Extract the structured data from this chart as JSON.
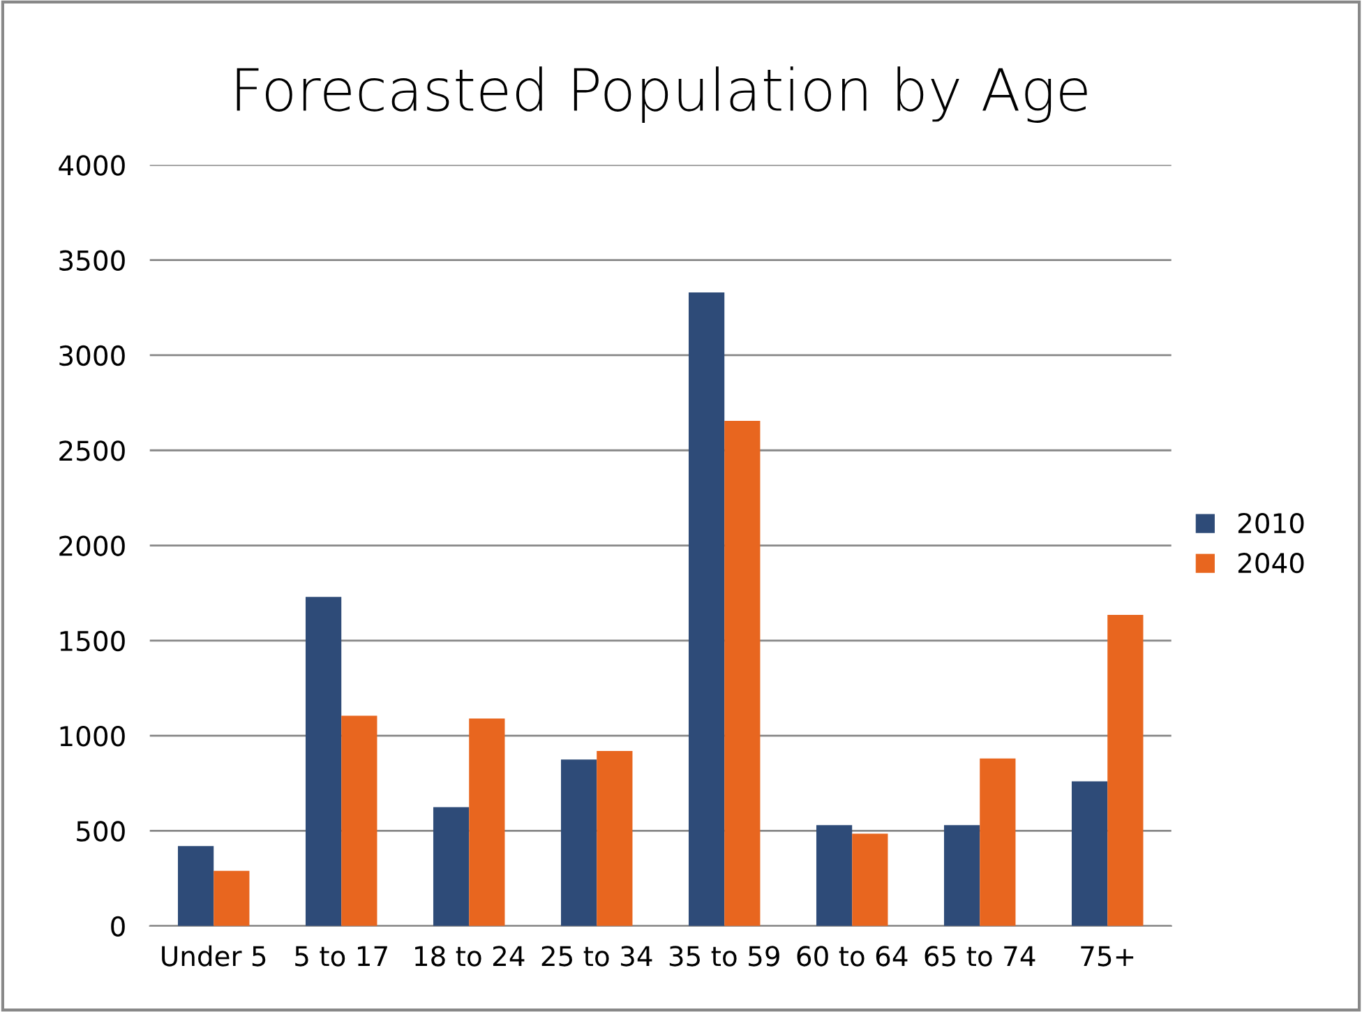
{
  "chart_data": {
    "type": "bar",
    "title": "Forecasted Population by Age",
    "categories": [
      "Under 5",
      "5 to 17",
      "18 to 24",
      "25 to 34",
      "35 to 59",
      "60 to 64",
      "65 to 74",
      "75+"
    ],
    "series": [
      {
        "name": "2010",
        "color": "#2e4b78",
        "values": [
          420,
          1730,
          625,
          875,
          3330,
          530,
          530,
          760
        ]
      },
      {
        "name": "2040",
        "color": "#e8661f",
        "values": [
          290,
          1105,
          1090,
          920,
          2655,
          485,
          880,
          1635
        ]
      }
    ],
    "ylim": [
      0,
      4000
    ],
    "yticks": [
      0,
      500,
      1000,
      1500,
      2000,
      2500,
      3000,
      3500,
      4000
    ],
    "grid": "y",
    "legend": "right"
  }
}
